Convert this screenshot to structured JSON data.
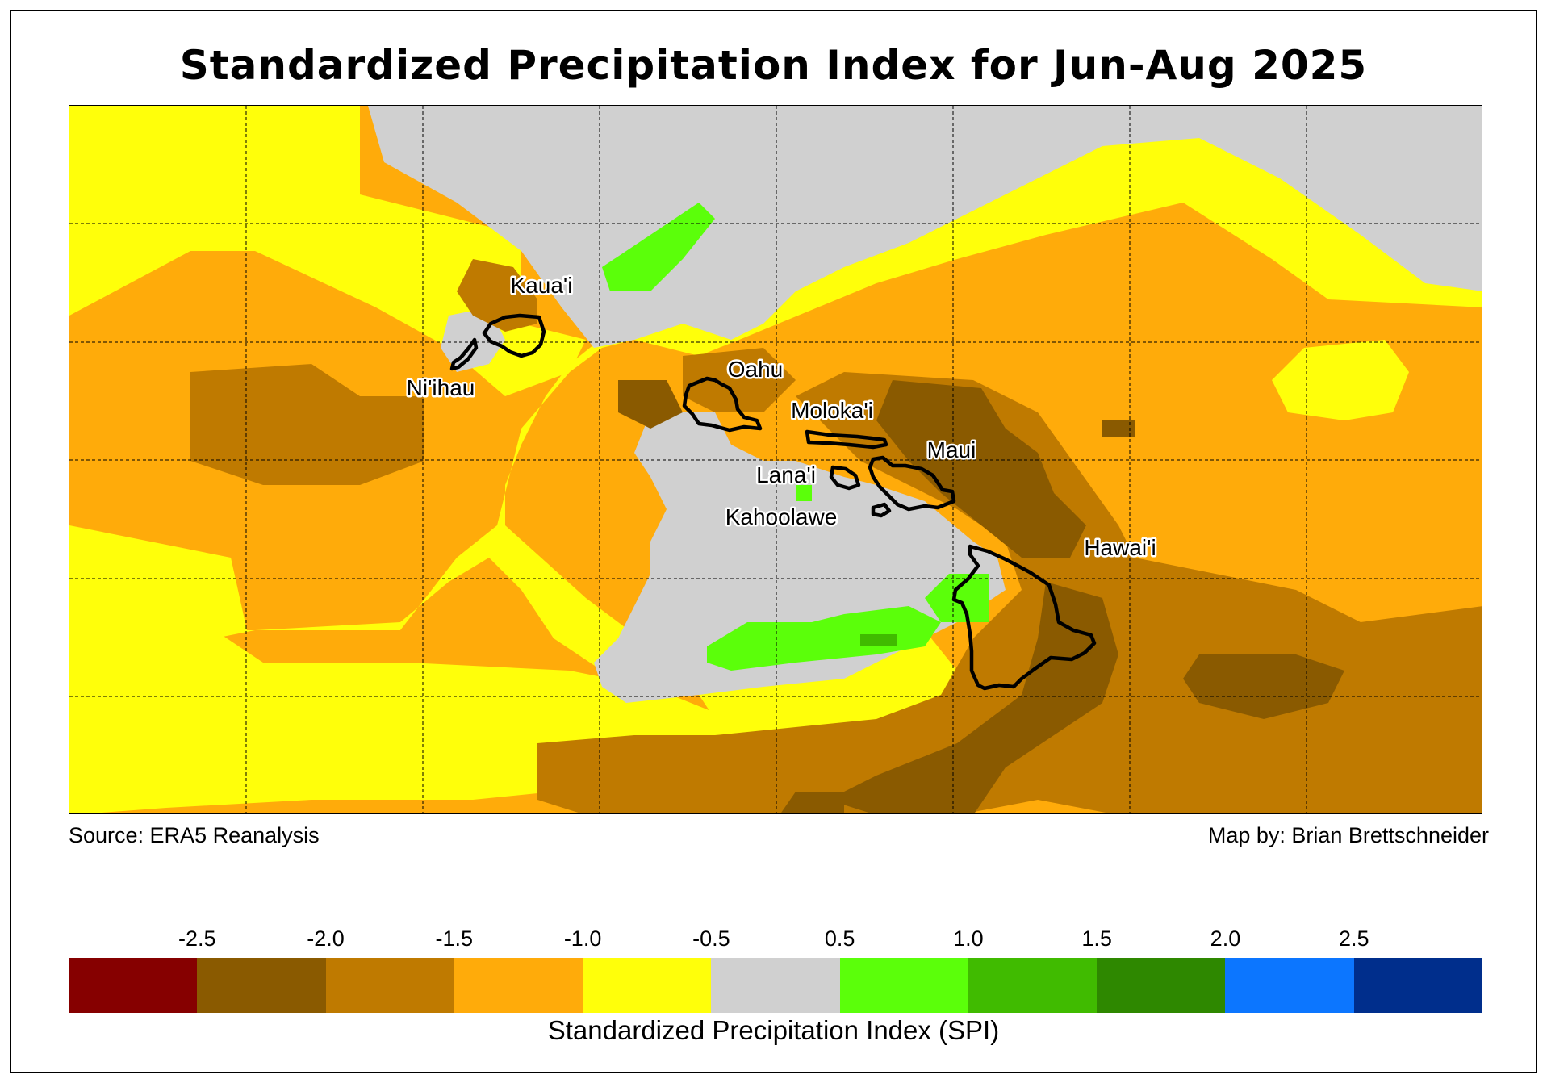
{
  "title": "Standardized Precipitation Index for Jun-Aug 2025",
  "source_text": "Source: ERA5 Reanalysis",
  "credit_text": "Map by: Brian Brettschneider",
  "islands": [
    {
      "name": "Kaua'i"
    },
    {
      "name": "Ni'ihau"
    },
    {
      "name": "Oahu"
    },
    {
      "name": "Moloka'i"
    },
    {
      "name": "Maui"
    },
    {
      "name": "Lana'i"
    },
    {
      "name": "Kahoolawe"
    },
    {
      "name": "Hawai'i"
    }
  ],
  "colorbar": {
    "label": "Standardized Precipitation Index (SPI)",
    "colors": [
      "#860000",
      "#8a5a00",
      "#bf7a00",
      "#ffab0a",
      "#ffff0a",
      "#d0d0d0",
      "#5bff0a",
      "#40bb00",
      "#2e8800",
      "#0c76ff",
      "#002e8c"
    ],
    "ticks": [
      "-2.5",
      "-2.0",
      "-1.5",
      "-1.0",
      "-0.5",
      "0.5",
      "1.0",
      "1.5",
      "2.0",
      "2.5"
    ]
  }
}
